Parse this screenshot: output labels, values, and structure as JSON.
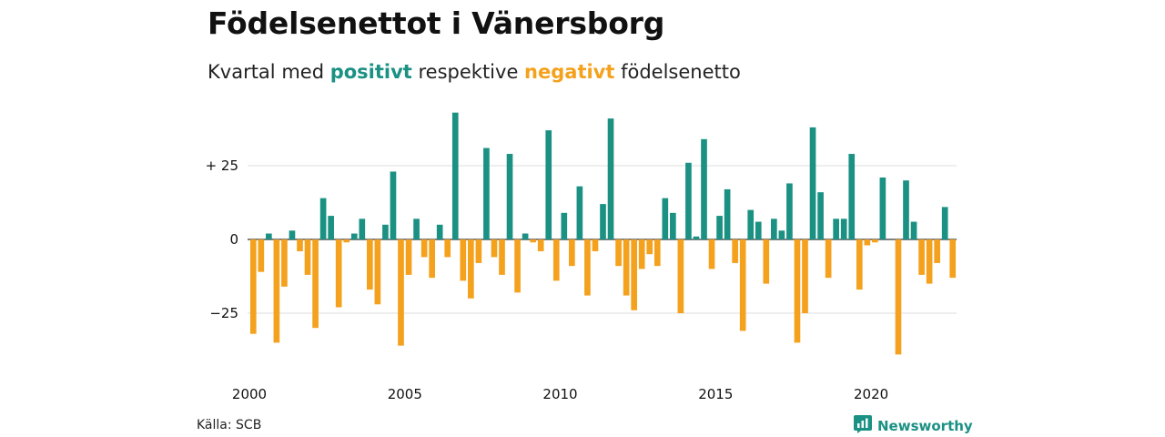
{
  "colors": {
    "positive": "#1a9183",
    "negative": "#f4a11d",
    "grid": "#dddddd",
    "zero_line": "#333333"
  },
  "header": {
    "title": "Födelsenettot i Vänersborg",
    "subtitle_prefix": "Kvartal med ",
    "subtitle_positive": "positivt",
    "subtitle_middle": " respektive ",
    "subtitle_negative": "negativt",
    "subtitle_suffix": " födelsenetto"
  },
  "footer": {
    "source": "Källa: SCB",
    "brand": "Newsworthy",
    "brand_icon": "newsworthy-logo-icon"
  },
  "chart_data": {
    "type": "bar",
    "title": "Födelsenettot i Vänersborg",
    "subtitle": "Kvartal med positivt respektive negativt födelsenetto",
    "xlabel": "",
    "ylabel": "",
    "x_ticks": [
      "2000",
      "2005",
      "2010",
      "2015",
      "2020"
    ],
    "y_ticks": [
      {
        "value": 25,
        "label": "+ 25"
      },
      {
        "value": 0,
        "label": "0"
      },
      {
        "value": -25,
        "label": "−25"
      }
    ],
    "ylim": [
      -42,
      44
    ],
    "grid": true,
    "legend": "none",
    "start_year": 2000,
    "periods_per_year": 4,
    "values": [
      -32,
      -11,
      2,
      -35,
      -16,
      3,
      -4,
      -12,
      -30,
      14,
      8,
      -23,
      -1,
      2,
      7,
      -17,
      -22,
      5,
      23,
      -36,
      -12,
      7,
      -6,
      -13,
      5,
      -6,
      43,
      -14,
      -20,
      -8,
      31,
      -6,
      -12,
      29,
      -18,
      2,
      -1,
      -4,
      37,
      -14,
      9,
      -9,
      18,
      -19,
      -4,
      12,
      41,
      -9,
      -19,
      -24,
      -10,
      -5,
      -9,
      14,
      9,
      -25,
      26,
      1,
      34,
      -10,
      8,
      17,
      -8,
      -31,
      10,
      6,
      -15,
      7,
      3,
      19,
      -35,
      -25,
      38,
      16,
      -13,
      7,
      7,
      29,
      -17,
      -2,
      -1,
      21,
      0,
      -39,
      20,
      6,
      -12,
      -15,
      -8,
      11,
      -13
    ]
  }
}
